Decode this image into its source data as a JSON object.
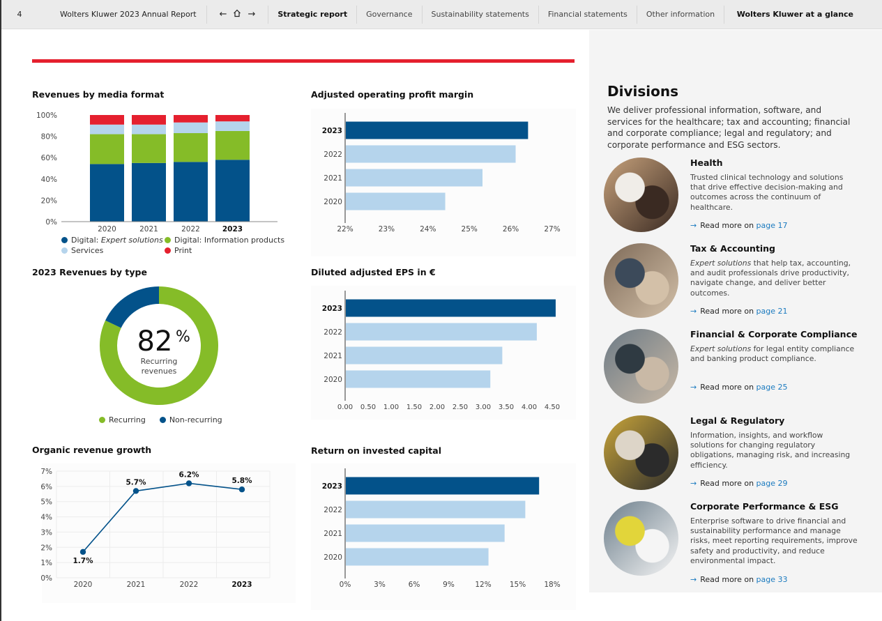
{
  "topbar": {
    "page_number": "4",
    "report_title": "Wolters Kluwer 2023 Annual Report",
    "nav": {
      "back": "←",
      "home": "⌂",
      "forward": "→"
    },
    "tabs": [
      {
        "label": "Strategic report",
        "active": true
      },
      {
        "label": "Governance",
        "active": false
      },
      {
        "label": "Sustainability statements",
        "active": false
      },
      {
        "label": "Financial statements",
        "active": false
      },
      {
        "label": "Other information",
        "active": false
      }
    ],
    "section_label": "Wolters Kluwer at a glance"
  },
  "colors": {
    "dark_blue": "#03528a",
    "light_blue": "#b5d4ec",
    "green": "#85bc28",
    "red": "#e5202e",
    "link_blue": "#1a7abf"
  },
  "chart_data": [
    {
      "id": "media",
      "type": "bar",
      "stacked": true,
      "title": "Revenues by media format",
      "categories": [
        "2020",
        "2021",
        "2022",
        "2023"
      ],
      "highlight_category": "2023",
      "yticks": [
        "0%",
        "20%",
        "40%",
        "60%",
        "80%",
        "100%"
      ],
      "ylim": [
        0,
        100
      ],
      "series": [
        {
          "name": "Digital: Expert solutions",
          "name_plain": "Digital: ",
          "name_italic": "Expert solutions",
          "color": "#03528a",
          "values": [
            54,
            55,
            56,
            58
          ]
        },
        {
          "name": "Digital: Information products",
          "color": "#85bc28",
          "values": [
            28,
            27,
            27,
            27
          ]
        },
        {
          "name": "Services",
          "color": "#b5d4ec",
          "values": [
            9,
            9,
            10,
            9
          ]
        },
        {
          "name": "Print",
          "color": "#e5202e",
          "values": [
            9,
            9,
            7,
            6
          ]
        }
      ],
      "legend": "bottom"
    },
    {
      "id": "revtype",
      "type": "pie",
      "donut": true,
      "title": "2023 Revenues by type",
      "center_value": "82",
      "center_unit": "%",
      "center_label_1": "Recurring",
      "center_label_2": "revenues",
      "slices": [
        {
          "name": "Recurring",
          "value": 82,
          "color": "#85bc28"
        },
        {
          "name": "Non-recurring",
          "value": 18,
          "color": "#03528a"
        }
      ],
      "legend": "bottom"
    },
    {
      "id": "organic",
      "type": "line",
      "title": "Organic revenue growth",
      "x": [
        "2020",
        "2021",
        "2022",
        "2023"
      ],
      "highlight_category": "2023",
      "values": [
        1.7,
        5.7,
        6.2,
        5.8
      ],
      "data_labels": [
        "1.7%",
        "5.7%",
        "6.2%",
        "5.8%"
      ],
      "yticks": [
        "0%",
        "1%",
        "2%",
        "3%",
        "4%",
        "5%",
        "6%",
        "7%"
      ],
      "ylim": [
        0,
        7
      ],
      "grid": true,
      "color": "#03528a"
    },
    {
      "id": "margin",
      "type": "bar",
      "orientation": "horizontal",
      "title": "Adjusted operating profit margin",
      "categories": [
        "2023",
        "2022",
        "2021",
        "2020"
      ],
      "highlight_category": "2023",
      "values": [
        26.4,
        26.1,
        25.3,
        24.4
      ],
      "xticks": [
        "22%",
        "23%",
        "24%",
        "25%",
        "26%",
        "27%"
      ],
      "xlim": [
        22,
        27
      ]
    },
    {
      "id": "eps",
      "type": "bar",
      "orientation": "horizontal",
      "title": "Diluted adjusted EPS in €",
      "categories": [
        "2023",
        "2022",
        "2021",
        "2020"
      ],
      "highlight_category": "2023",
      "values": [
        4.56,
        4.15,
        3.4,
        3.14
      ],
      "xticks": [
        "0.00",
        "0.50",
        "1.00",
        "1.50",
        "2.00",
        "2.50",
        "3.00",
        "3.50",
        "4.00",
        "4.50"
      ],
      "xlim": [
        0,
        4.5
      ]
    },
    {
      "id": "roic",
      "type": "bar",
      "orientation": "horizontal",
      "title": "Return on invested capital",
      "categories": [
        "2023",
        "2022",
        "2021",
        "2020"
      ],
      "highlight_category": "2023",
      "values": [
        16.8,
        15.6,
        13.8,
        12.4
      ],
      "xticks": [
        "0%",
        "3%",
        "6%",
        "9%",
        "12%",
        "15%",
        "18%"
      ],
      "xlim": [
        0,
        18
      ]
    }
  ],
  "divisions": {
    "heading": "Divisions",
    "intro": "We deliver professional information, software, and services for the healthcare; tax and accounting; financial and corporate compliance; legal and regulatory; and corporate performance and ESG sectors.",
    "read_more_prefix": "Read more on",
    "items": [
      {
        "name": "Health",
        "desc_italic": "",
        "desc": "Trusted clinical technology and solutions that drive effective decision-making and outcomes across the continuum of healthcare.",
        "page": "page 17",
        "photo": "two clinicians reviewing a tablet"
      },
      {
        "name": "Tax & Accounting",
        "desc_italic": "Expert solutions",
        "desc": " that help tax, accounting, and audit professionals drive productivity, navigate change, and deliver better outcomes.",
        "page": "page 21",
        "photo": "colleagues collaborating at a desk"
      },
      {
        "name": "Financial & Corporate Compliance",
        "desc_italic": "Expert solutions",
        "desc": " for legal entity compliance and banking product compliance.",
        "page": "page 25",
        "photo": "businesswoman in a meeting"
      },
      {
        "name": "Legal & Regulatory",
        "desc_italic": "",
        "desc": "Information, insights, and workflow solutions for changing regulatory obligations, managing risk, and increasing efficiency.",
        "page": "page 29",
        "photo": "woman on a train reading her phone"
      },
      {
        "name": "Corporate Performance & ESG",
        "desc_italic": "",
        "desc": "Enterprise software to drive financial and sustainability performance and manage risks, meet reporting requirements, improve safety and productivity, and reduce environmental impact.",
        "page": "page 33",
        "photo": "engineers in hard hats and safety vests"
      }
    ]
  }
}
